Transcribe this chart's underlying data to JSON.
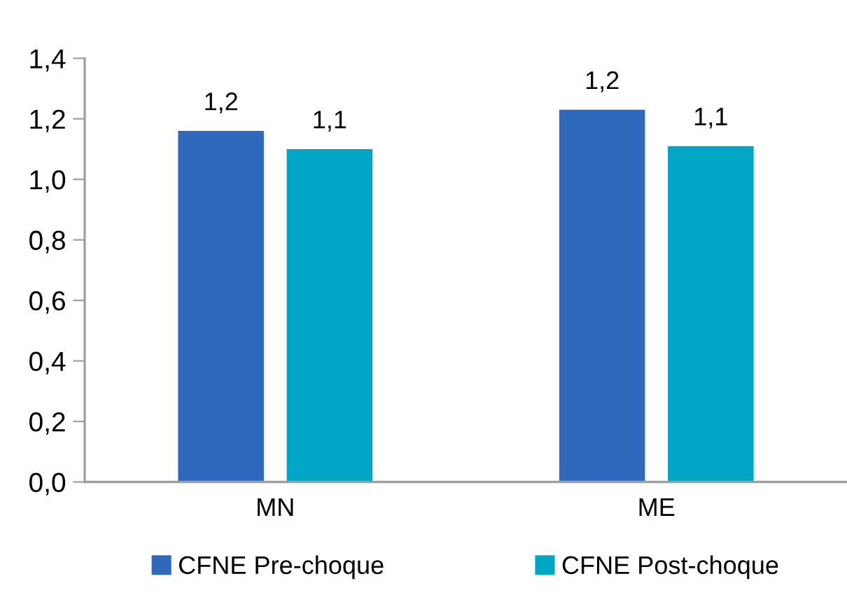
{
  "chart_data": {
    "type": "bar",
    "categories": [
      "MN",
      "ME"
    ],
    "series": [
      {
        "name": "CFNE Pre-choque",
        "color": "#2e69bc",
        "values": [
          1.16,
          1.23
        ],
        "value_labels": [
          "1,2",
          "1,2"
        ]
      },
      {
        "name": "CFNE Post-choque",
        "color": "#00a6c6",
        "values": [
          1.1,
          1.11
        ],
        "value_labels": [
          "1,1",
          "1,1"
        ]
      }
    ],
    "ylim": [
      0,
      1.4
    ],
    "yticks": [
      {
        "value": 0,
        "label": "0,0"
      },
      {
        "value": 0.2,
        "label": "0,2"
      },
      {
        "value": 0.4,
        "label": "0,4"
      },
      {
        "value": 0.6,
        "label": "0,6"
      },
      {
        "value": 0.8,
        "label": "0,8"
      },
      {
        "value": 1.0,
        "label": "1,0"
      },
      {
        "value": 1.2,
        "label": "1,2"
      },
      {
        "value": 1.4,
        "label": "1,4"
      }
    ],
    "grid": false,
    "legend": "bottom"
  }
}
